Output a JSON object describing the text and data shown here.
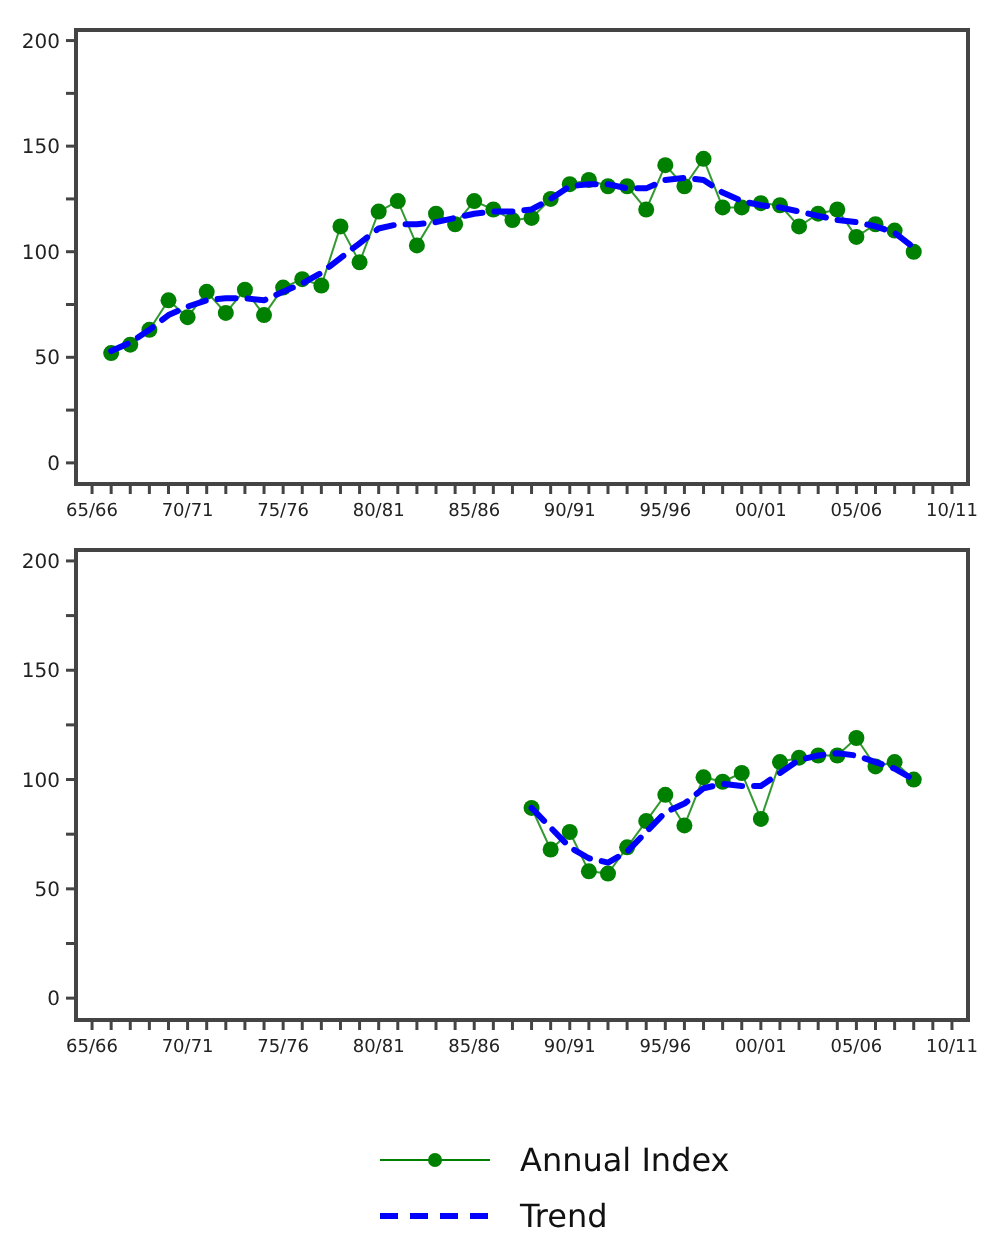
{
  "chart_data": [
    {
      "type": "line",
      "ylim": [
        -10,
        205
      ],
      "categories": [
        "65/66",
        null,
        null,
        null,
        null,
        "70/71",
        null,
        null,
        null,
        null,
        "75/76",
        null,
        null,
        null,
        null,
        "80/81",
        null,
        null,
        null,
        null,
        "85/86",
        null,
        null,
        null,
        null,
        "90/91",
        null,
        null,
        null,
        null,
        "95/96",
        null,
        null,
        null,
        null,
        "00/01",
        null,
        null,
        null,
        null,
        "05/06",
        null,
        null,
        null,
        null,
        "10/11"
      ],
      "yticks": [
        0,
        {
          "value": 25,
          "label": null
        },
        50,
        {
          "value": 75,
          "label": null
        },
        100,
        {
          "value": 125,
          "label": null
        },
        150,
        {
          "value": 175,
          "label": null
        },
        200
      ],
      "series": [
        {
          "color": "#008000",
          "marker": "circle",
          "line_style": "solid",
          "values": [
            null,
            52,
            56,
            63,
            77,
            69,
            81,
            71,
            82,
            70,
            83,
            87,
            84,
            112,
            95,
            119,
            124,
            103,
            118,
            113,
            124,
            120,
            115,
            116,
            125,
            132,
            134,
            131,
            131,
            120,
            141,
            131,
            144,
            121,
            121,
            123,
            122,
            112,
            118,
            120,
            107,
            113,
            110,
            100,
            null,
            null
          ]
        },
        {
          "color": "#0000ff",
          "marker": "none",
          "line_style": "dashed",
          "values": [
            null,
            53,
            57,
            63,
            70,
            74,
            77,
            78,
            78,
            77,
            81,
            85,
            90,
            97,
            104,
            111,
            113,
            113,
            114,
            116,
            118,
            119,
            119,
            120,
            125,
            131,
            132,
            132,
            130,
            130,
            134,
            135,
            134,
            128,
            124,
            122,
            121,
            119,
            117,
            115,
            114,
            112,
            109,
            102,
            null,
            null
          ]
        }
      ]
    },
    {
      "type": "line",
      "ylim": [
        -10,
        205
      ],
      "legend": "bottom",
      "categories": [
        "65/66",
        null,
        null,
        null,
        null,
        "70/71",
        null,
        null,
        null,
        null,
        "75/76",
        null,
        null,
        null,
        null,
        "80/81",
        null,
        null,
        null,
        null,
        "85/86",
        null,
        null,
        null,
        null,
        "90/91",
        null,
        null,
        null,
        null,
        "95/96",
        null,
        null,
        null,
        null,
        "00/01",
        null,
        null,
        null,
        null,
        "05/06",
        null,
        null,
        null,
        null,
        "10/11"
      ],
      "yticks": [
        0,
        {
          "value": 25,
          "label": null
        },
        50,
        {
          "value": 75,
          "label": null
        },
        100,
        {
          "value": 125,
          "label": null
        },
        150,
        {
          "value": 175,
          "label": null
        },
        200
      ],
      "series": [
        {
          "name": "Annual Index",
          "color": "#008000",
          "marker": "circle",
          "line_style": "solid",
          "values": [
            null,
            null,
            null,
            null,
            null,
            null,
            null,
            null,
            null,
            null,
            null,
            null,
            null,
            null,
            null,
            null,
            null,
            null,
            null,
            null,
            null,
            null,
            null,
            87,
            68,
            76,
            58,
            57,
            69,
            81,
            93,
            79,
            101,
            99,
            103,
            82,
            108,
            110,
            111,
            111,
            119,
            106,
            108,
            100,
            null,
            null
          ]
        },
        {
          "name": "Trend",
          "color": "#0000ff",
          "marker": "none",
          "line_style": "dashed",
          "values": [
            null,
            null,
            null,
            null,
            null,
            null,
            null,
            null,
            null,
            null,
            null,
            null,
            null,
            null,
            null,
            null,
            null,
            null,
            null,
            null,
            null,
            null,
            null,
            87,
            78,
            69,
            64,
            62,
            67,
            76,
            85,
            89,
            96,
            98,
            97,
            97,
            103,
            109,
            111,
            112,
            111,
            108,
            105,
            100,
            null,
            null
          ]
        }
      ]
    }
  ]
}
